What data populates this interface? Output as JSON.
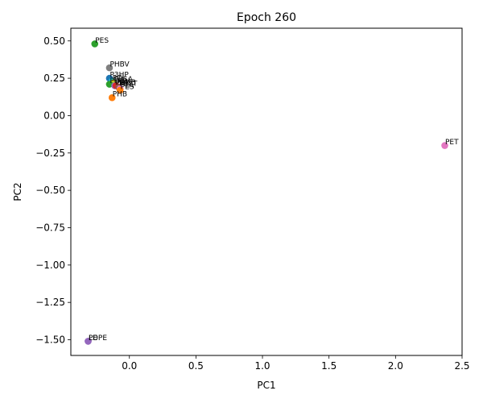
{
  "chart_data": {
    "type": "scatter",
    "title": "Epoch 260",
    "xlabel": "PC1",
    "ylabel": "PC2",
    "xlim": [
      -0.44,
      2.5
    ],
    "ylim": [
      -1.605,
      0.585
    ],
    "xticks": [
      0.0,
      0.5,
      1.0,
      1.5,
      2.0,
      2.5
    ],
    "xtick_labels": [
      "0.0",
      "0.5",
      "1.0",
      "1.5",
      "2.0",
      "2.5"
    ],
    "yticks": [
      0.5,
      0.25,
      0.0,
      -0.25,
      -0.5,
      -0.75,
      -1.0,
      -1.25,
      -1.5
    ],
    "ytick_labels": [
      "0.50",
      "0.25",
      "0.00",
      "−0.25",
      "−0.50",
      "−0.75",
      "−1.00",
      "−1.25",
      "−1.50"
    ],
    "grid": false,
    "points": [
      {
        "label": "PES",
        "x": -0.26,
        "y": 0.48,
        "color": "#2ca02c"
      },
      {
        "label": "PHBV",
        "x": -0.15,
        "y": 0.32,
        "color": "#7f7f7f"
      },
      {
        "label": "P3HP",
        "x": -0.15,
        "y": 0.25,
        "color": "#1f77b4"
      },
      {
        "label": "PCL",
        "x": -0.13,
        "y": 0.23,
        "color": "#17becf"
      },
      {
        "label": "PBSA",
        "x": -0.12,
        "y": 0.22,
        "color": "#bcbd22"
      },
      {
        "label": "PHBH",
        "x": -0.15,
        "y": 0.21,
        "color": "#2ca02c"
      },
      {
        "label": "PEA",
        "x": -0.11,
        "y": 0.2,
        "color": "#9467bd"
      },
      {
        "label": "P4HB",
        "x": -0.1,
        "y": 0.2,
        "color": "#d62728"
      },
      {
        "label": "PBAT",
        "x": -0.08,
        "y": 0.19,
        "color": "#8c564b"
      },
      {
        "label": "PLA",
        "x": -0.07,
        "y": 0.18,
        "color": "#e377c2"
      },
      {
        "label": "PES",
        "x": -0.07,
        "y": 0.17,
        "color": "#ff7f0e"
      },
      {
        "label": "PHB",
        "x": -0.13,
        "y": 0.12,
        "color": "#ff7f0e"
      },
      {
        "label": "PET",
        "x": 2.37,
        "y": -0.2,
        "color": "#e377c2"
      },
      {
        "label": "LDPE",
        "x": -0.31,
        "y": -1.51,
        "color": "#9467bd"
      },
      {
        "label": "PE",
        "x": -0.31,
        "y": -1.51,
        "color": "#9467bd"
      }
    ]
  }
}
